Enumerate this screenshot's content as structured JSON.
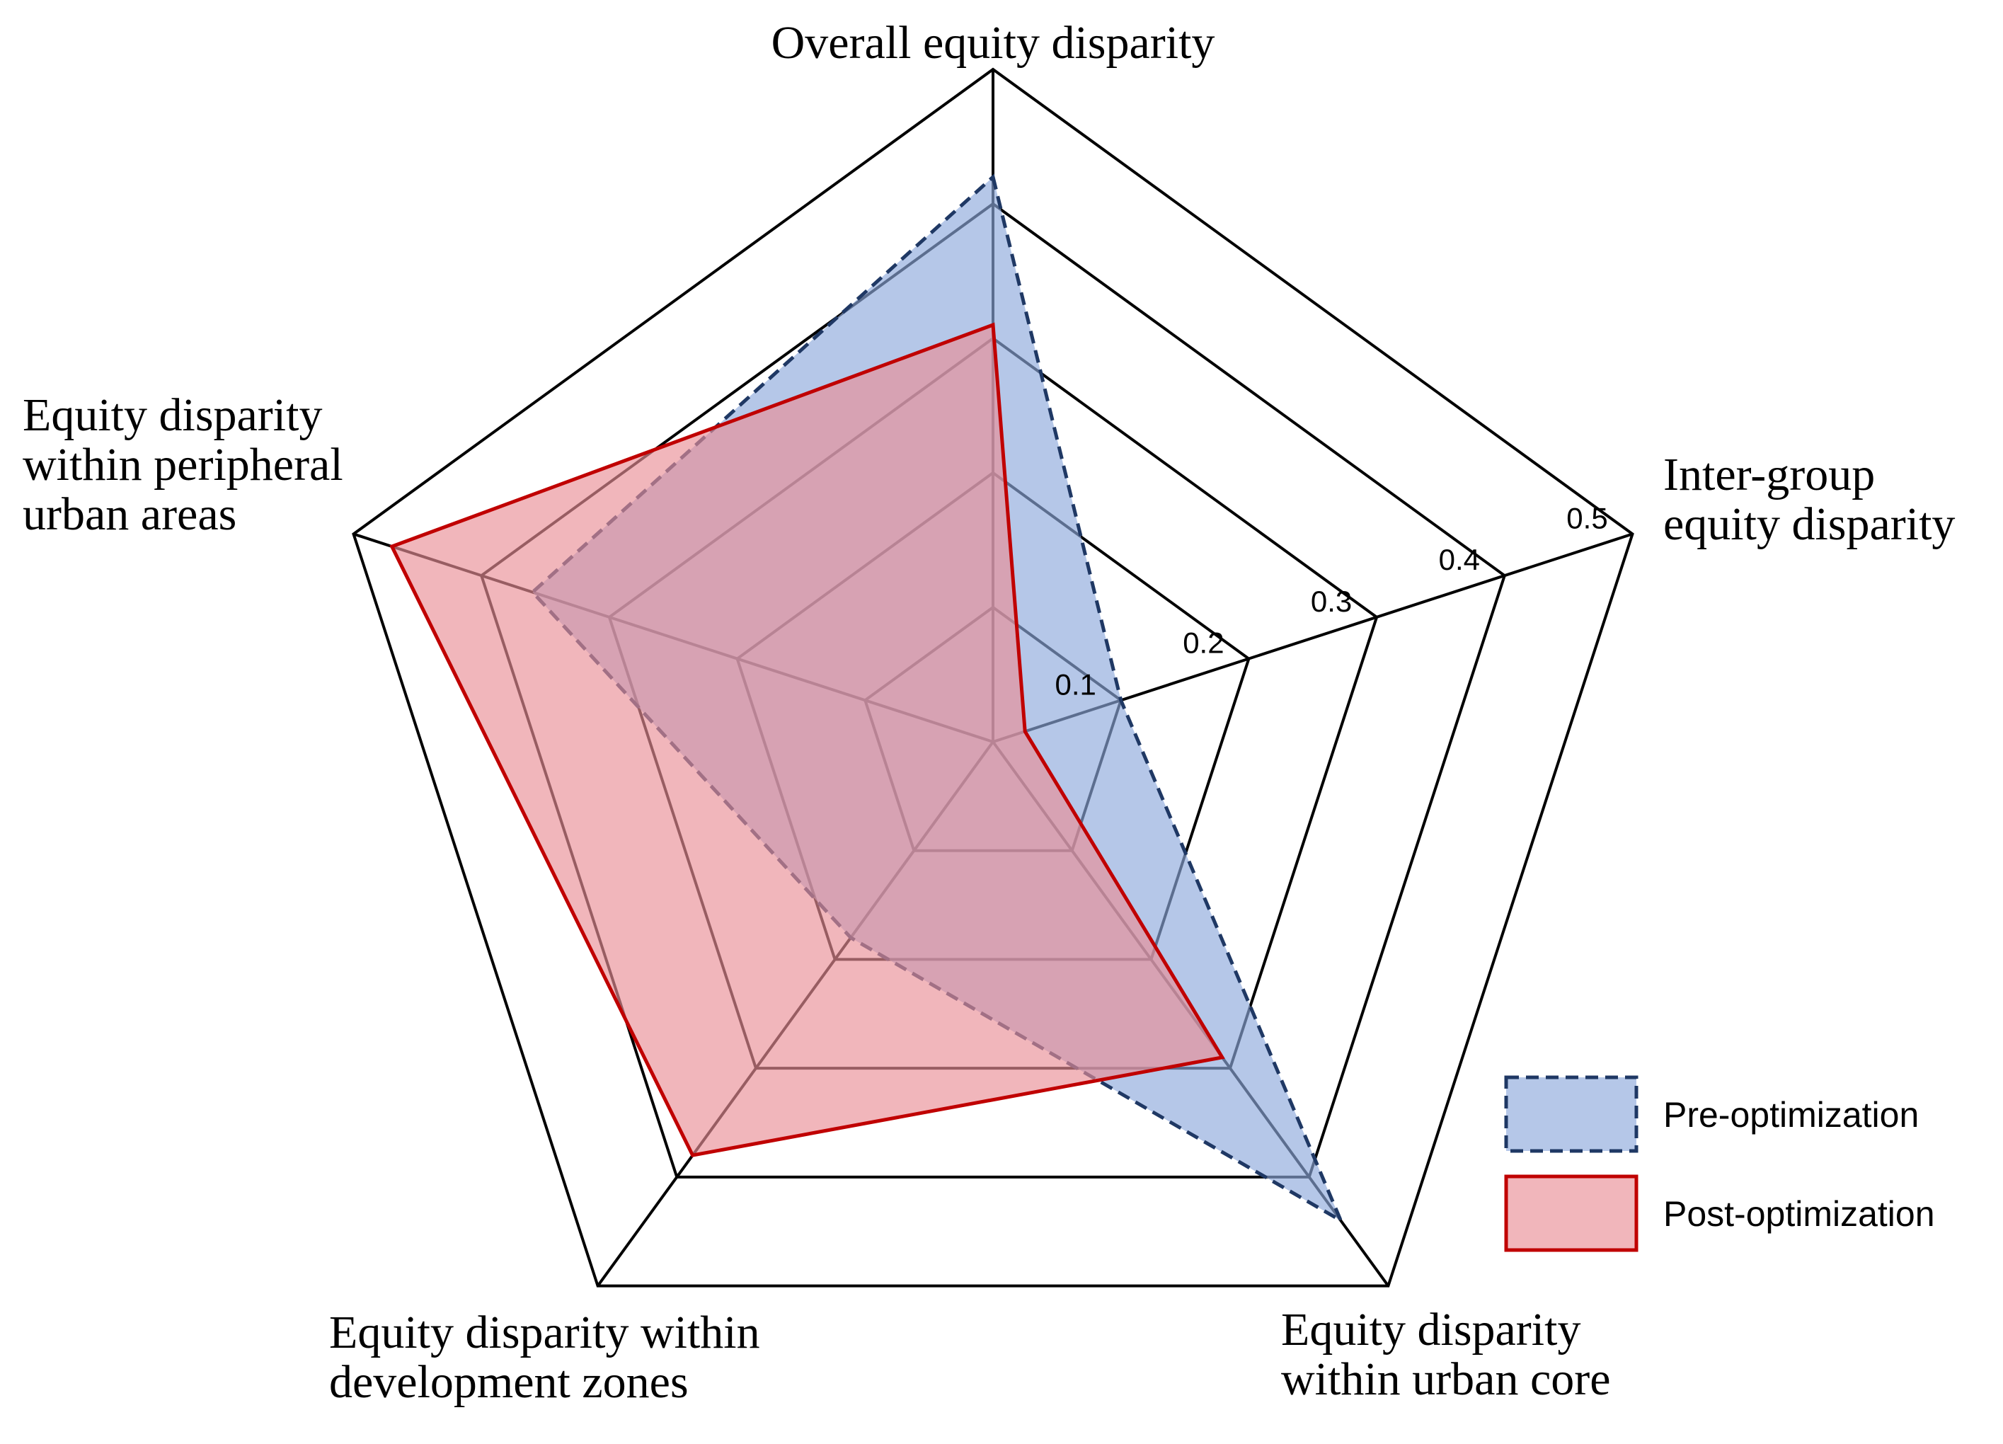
{
  "chart_data": {
    "type": "radar",
    "axes": [
      {
        "id": "overall",
        "lines": [
          "Overall equity disparity"
        ]
      },
      {
        "id": "intergroup",
        "lines": [
          "Inter-group",
          "equity disparity"
        ]
      },
      {
        "id": "core",
        "lines": [
          "Equity disparity",
          "within urban core"
        ]
      },
      {
        "id": "devzones",
        "lines": [
          "Equity disparity within",
          "development zones"
        ]
      },
      {
        "id": "peripheral",
        "lines": [
          "Equity disparity",
          "within peripheral",
          "urban areas"
        ]
      }
    ],
    "rlim": [
      0,
      0.5
    ],
    "ticks": [
      {
        "value": 0.1,
        "label": "0.1"
      },
      {
        "value": 0.2,
        "label": "0.2"
      },
      {
        "value": 0.3,
        "label": "0.3"
      },
      {
        "value": 0.4,
        "label": "0.4"
      },
      {
        "value": 0.5,
        "label": "0.5"
      }
    ],
    "series": [
      {
        "name": "Pre-optimization",
        "values": [
          0.42,
          0.1,
          0.44,
          0.18,
          0.36
        ],
        "fill": "#8ea9db",
        "fill_opacity": 0.65,
        "stroke": "#1f3864",
        "dashed": true
      },
      {
        "name": "Post-optimization",
        "values": [
          0.31,
          0.025,
          0.29,
          0.38,
          0.47
        ],
        "fill": "#ea8f96",
        "fill_opacity": 0.65,
        "stroke": "#c00000",
        "dashed": false
      }
    ],
    "legend_position": "bottom-right",
    "grid": true
  }
}
